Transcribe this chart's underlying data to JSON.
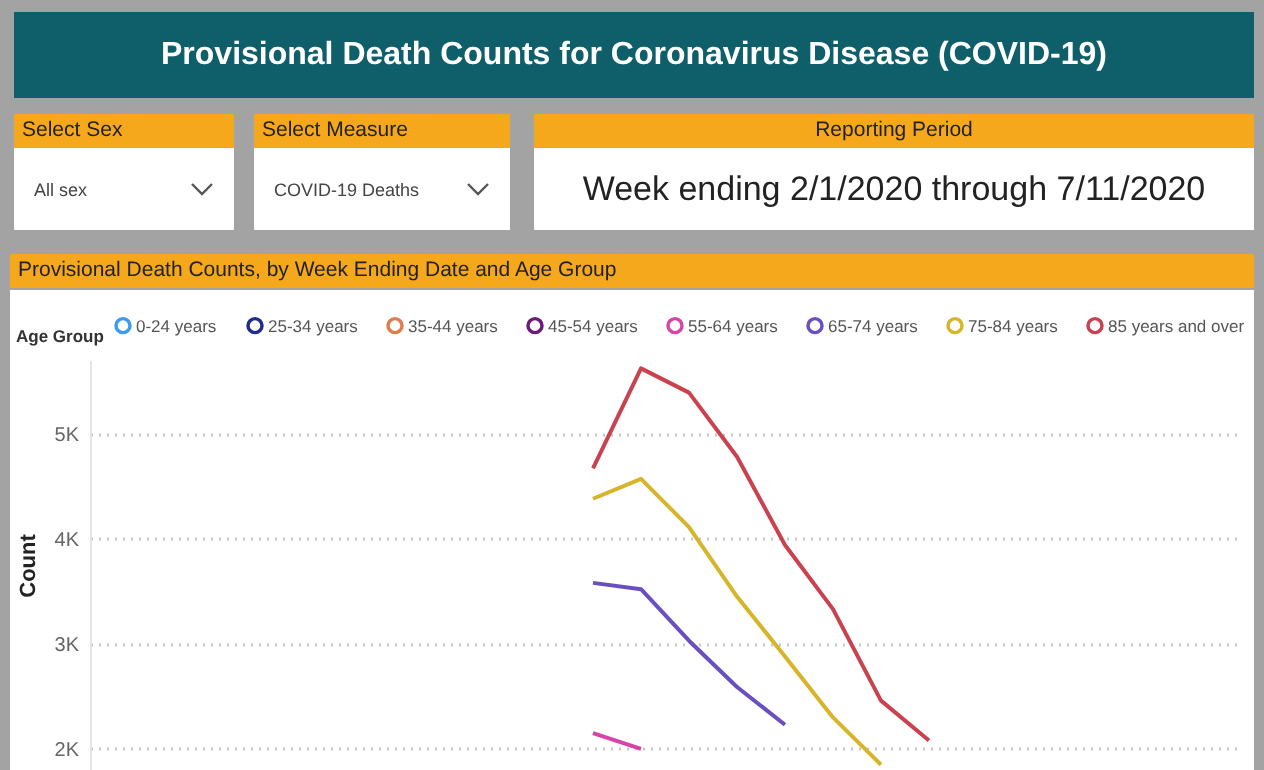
{
  "chart_data": {
    "type": "line",
    "title": "Provisional Death Counts for Coronavirus Disease (COVID-19)",
    "subtitle": "Provisional Death Counts, by Week Ending Date and Age Group",
    "annotations": [
      "Select Sex",
      "All sex",
      "Select Measure",
      "COVID-19 Deaths",
      "Reporting Period",
      "Week ending 2/1/2020 through 7/11/2020"
    ],
    "ylabel": "Count",
    "legend_title": "Age Group",
    "legend": "top left",
    "grid": "y",
    "line_style": "solid",
    "marker": "none",
    "tick_labels": "y",
    "categories": [
      null,
      null,
      null,
      null,
      null,
      null,
      null,
      null,
      null,
      null,
      null,
      null,
      null,
      null,
      null,
      null,
      null,
      null,
      null,
      null,
      null,
      null,
      null,
      null
    ],
    "ylim": [
      1800,
      5700
    ],
    "yticks": [
      {
        "value": 2000,
        "label": "2K"
      },
      {
        "value": 3000,
        "label": "3K"
      },
      {
        "value": 4000,
        "label": "4K"
      },
      {
        "value": 5000,
        "label": "5K"
      }
    ],
    "series": [
      {
        "name": "0-24 years",
        "color": "#3a9bef",
        "values": [
          null,
          null,
          null,
          null,
          null,
          null,
          null,
          null,
          null,
          null,
          null,
          null,
          null,
          null,
          null,
          null,
          null,
          null,
          null,
          null,
          null,
          null,
          null,
          null
        ]
      },
      {
        "name": "25-34 years",
        "color": "#1f2c8f",
        "values": [
          null,
          null,
          null,
          null,
          null,
          null,
          null,
          null,
          null,
          null,
          null,
          null,
          null,
          null,
          null,
          null,
          null,
          null,
          null,
          null,
          null,
          null,
          null,
          null
        ]
      },
      {
        "name": "35-44 years",
        "color": "#e07c4e",
        "values": [
          null,
          null,
          null,
          null,
          null,
          null,
          null,
          null,
          null,
          null,
          null,
          null,
          null,
          null,
          null,
          null,
          null,
          null,
          null,
          null,
          null,
          null,
          null,
          null
        ]
      },
      {
        "name": "45-54 years",
        "color": "#6b1b7a",
        "values": [
          null,
          null,
          null,
          null,
          null,
          null,
          null,
          null,
          null,
          null,
          null,
          null,
          null,
          null,
          null,
          null,
          null,
          null,
          null,
          null,
          null,
          null,
          null,
          null
        ]
      },
      {
        "name": "55-64 years",
        "color": "#d644aa",
        "values": [
          null,
          null,
          null,
          null,
          null,
          null,
          null,
          null,
          null,
          null,
          2150,
          2000,
          null,
          null,
          null,
          null,
          null,
          null,
          null,
          null,
          null,
          null,
          null,
          null
        ]
      },
      {
        "name": "65-74 years",
        "color": "#6a4fc0",
        "values": [
          null,
          null,
          null,
          null,
          null,
          null,
          null,
          null,
          null,
          null,
          3580,
          3520,
          3030,
          2590,
          2230,
          null,
          null,
          null,
          null,
          null,
          null,
          null,
          null,
          null
        ]
      },
      {
        "name": "75-84 years",
        "color": "#d6b52a",
        "values": [
          null,
          null,
          null,
          null,
          null,
          null,
          null,
          null,
          null,
          null,
          4380,
          4570,
          4110,
          3450,
          2880,
          2300,
          1850,
          null,
          null,
          null,
          null,
          null,
          null,
          null
        ]
      },
      {
        "name": "85 years and over",
        "color": "#c8434f",
        "values": [
          null,
          null,
          null,
          null,
          null,
          null,
          null,
          null,
          null,
          null,
          4670,
          5620,
          5390,
          4780,
          3940,
          3330,
          2460,
          2080,
          null,
          null,
          null,
          null,
          null,
          null
        ]
      }
    ]
  }
}
